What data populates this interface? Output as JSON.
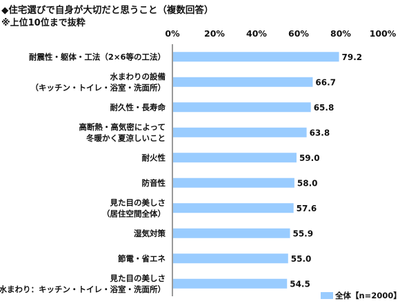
{
  "title": "◆住宅選びで自身が大切だと思うこと（複数回答）",
  "subtitle": "※上位10位まで抜粋",
  "colors": {
    "bar": "#99CCFF",
    "axis": "#333333",
    "text": "#111111"
  },
  "chart_data": {
    "type": "bar",
    "orientation": "horizontal",
    "xlim": [
      0,
      100
    ],
    "ticks": [
      "0%",
      "20%",
      "40%",
      "60%",
      "80%",
      "100%"
    ],
    "tick_values": [
      0,
      20,
      40,
      60,
      80,
      100
    ],
    "grid": false,
    "legend_position": "bottom-right",
    "categories": [
      [
        "耐震性・躯体・工法（2×6等の工法）"
      ],
      [
        "水まわりの設備",
        "（キッチン・トイレ・浴室・洗面所）"
      ],
      [
        "耐久性・長寿命"
      ],
      [
        "高断熱・高気密によって",
        "冬暖かく夏涼しいこと"
      ],
      [
        "耐火性"
      ],
      [
        "防音性"
      ],
      [
        "見た目の美しさ",
        "（居住空間全体）"
      ],
      [
        "湿気対策"
      ],
      [
        "節電・省エネ"
      ],
      [
        "見た目の美しさ",
        "（水まわり：キッチン・トイレ・浴室・洗面所）"
      ]
    ],
    "series": [
      {
        "name": "全体【n=2000】",
        "values": [
          79.2,
          66.7,
          65.8,
          63.8,
          59.0,
          58.0,
          57.6,
          55.9,
          55.0,
          54.5
        ],
        "labels": [
          "79.2",
          "66.7",
          "65.8",
          "63.8",
          "59.0",
          "58.0",
          "57.6",
          "55.9",
          "55.0",
          "54.5"
        ]
      }
    ]
  }
}
